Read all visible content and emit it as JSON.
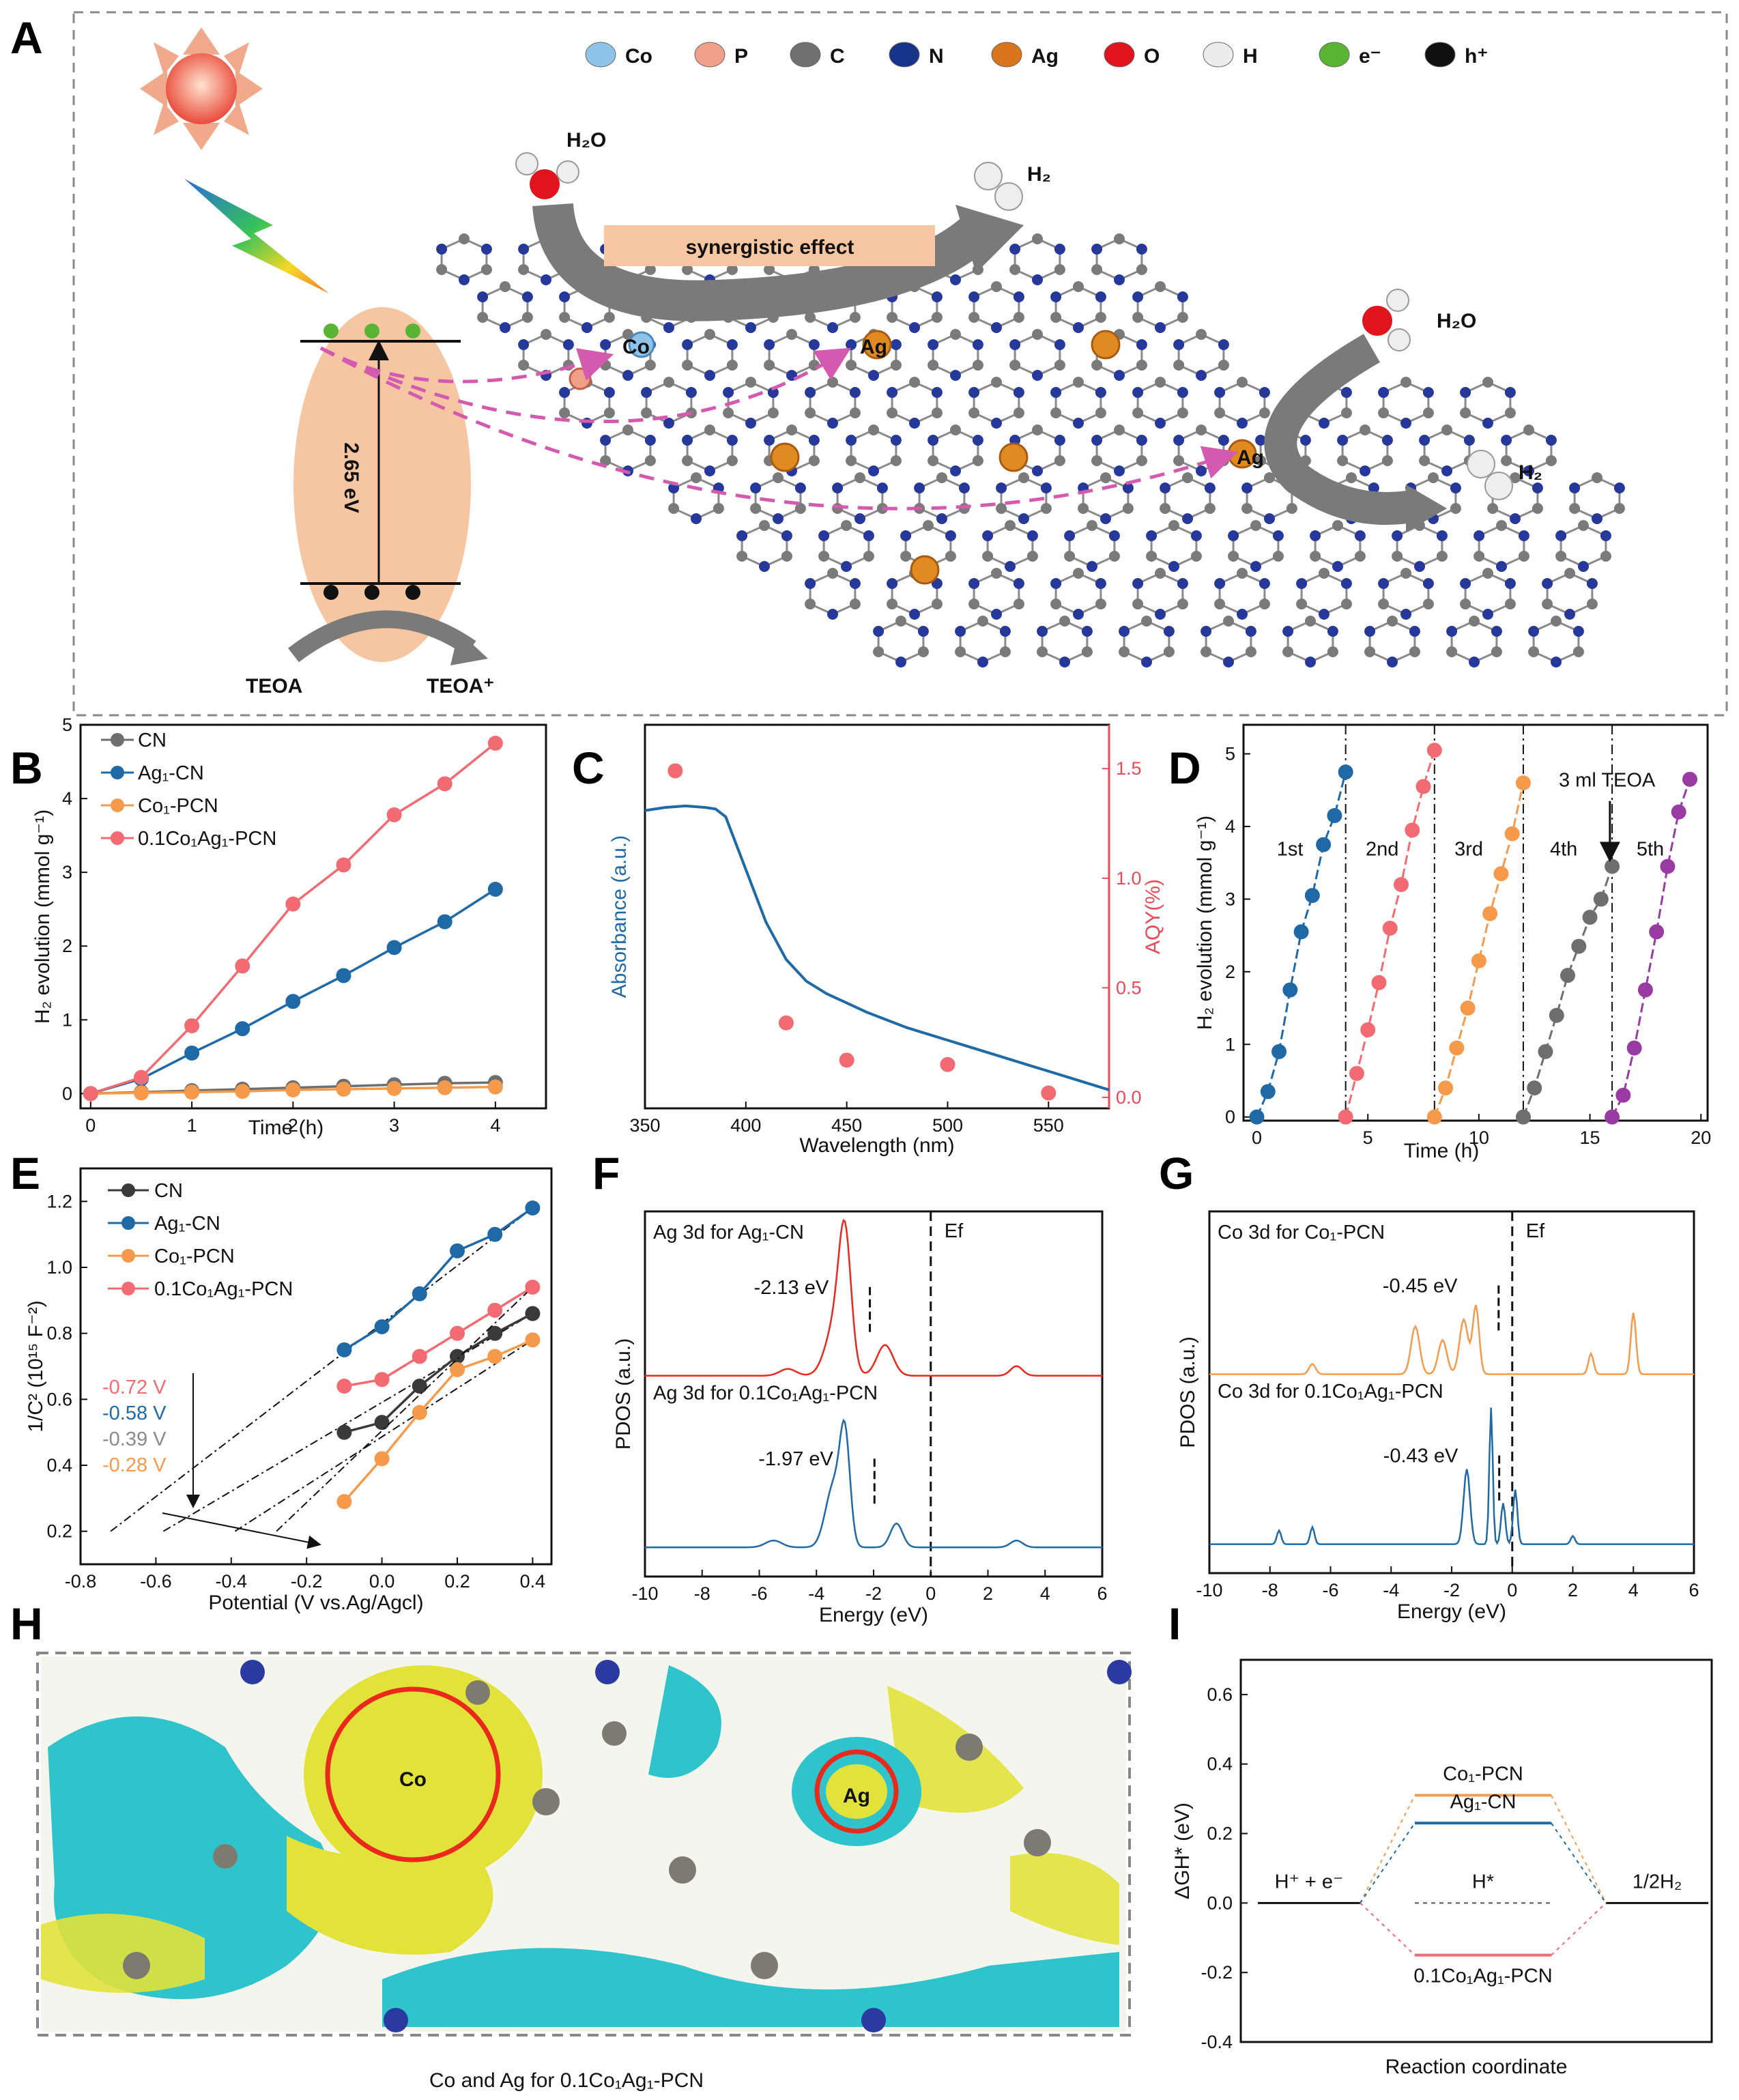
{
  "panel_labels": [
    "A",
    "B",
    "C",
    "D",
    "E",
    "F",
    "G",
    "H",
    "I"
  ],
  "panelA": {
    "legend": [
      "Co",
      "P",
      "C",
      "N",
      "Ag",
      "O",
      "H",
      "e⁻",
      "h⁺"
    ],
    "legend_colors": [
      "#8fc3ea",
      "#f0a088",
      "#707070",
      "#15348a",
      "#d8741c",
      "#e0141c",
      "#ececec",
      "#58b432",
      "#101010"
    ],
    "band_gap": "2.65 eV",
    "teoa": "TEOA",
    "teoa_plus": "TEOA⁺",
    "water": "H₂O",
    "hydrogen": "H₂",
    "effect": "synergistic effect",
    "co": "Co",
    "ag": "Ag"
  },
  "panelH": {
    "caption": "Co and Ag for  0.1Co₁Ag₁-PCN",
    "co": "Co",
    "ag": "Ag"
  },
  "chart_data": [
    {
      "id": "B",
      "type": "line",
      "xlabel": "Time (h)",
      "ylabel": "H₂ evolution (mmol g⁻¹)",
      "xlim": [
        -0.1,
        4.5
      ],
      "ylim": [
        -0.2,
        5
      ],
      "xticks": [
        "0",
        "1",
        "2",
        "3",
        "4"
      ],
      "yticks": [
        "0",
        "1",
        "2",
        "3",
        "4",
        "5"
      ],
      "x": [
        0,
        0.5,
        1,
        1.5,
        2,
        2.5,
        3,
        3.5,
        4
      ],
      "series": [
        {
          "name": "CN",
          "color": "#6e6e6e",
          "values": [
            0,
            0.02,
            0.04,
            0.06,
            0.08,
            0.1,
            0.12,
            0.14,
            0.15
          ]
        },
        {
          "name": "Ag₁-CN",
          "color": "#1f6aa6",
          "values": [
            0,
            0.2,
            0.55,
            0.88,
            1.25,
            1.6,
            1.98,
            2.33,
            2.77
          ]
        },
        {
          "name": "Co₁-PCN",
          "color": "#f59a4a",
          "values": [
            0,
            0.01,
            0.02,
            0.03,
            0.05,
            0.06,
            0.07,
            0.08,
            0.09
          ]
        },
        {
          "name": "0.1Co₁Ag₁-PCN",
          "color": "#f26a72",
          "values": [
            0,
            0.22,
            0.92,
            1.73,
            2.57,
            3.1,
            3.78,
            4.2,
            4.75
          ]
        }
      ]
    },
    {
      "id": "C",
      "type": "line",
      "xlabel": "Wavelength (nm)",
      "ylabel": "Absorbance (a.u.)",
      "y2label": "AQY(%)",
      "xlim": [
        350,
        580
      ],
      "y2lim": [
        -0.05,
        1.7
      ],
      "xticks": [
        "350",
        "400",
        "450",
        "500",
        "550"
      ],
      "y2ticks": [
        "0.0",
        "0.5",
        "1.0",
        "1.5"
      ],
      "absorbance": {
        "name": "Absorbance",
        "color": "#1f6aa6",
        "x": [
          350,
          360,
          370,
          380,
          385,
          390,
          400,
          410,
          420,
          430,
          440,
          450,
          460,
          470,
          480,
          500,
          520,
          540,
          560,
          580
        ],
        "values": [
          0.92,
          0.93,
          0.935,
          0.93,
          0.925,
          0.9,
          0.73,
          0.56,
          0.44,
          0.37,
          0.33,
          0.3,
          0.27,
          0.245,
          0.22,
          0.18,
          0.14,
          0.1,
          0.06,
          0.02
        ]
      },
      "aqy": {
        "name": "AQY",
        "color": "#f26a72",
        "x": [
          365,
          420,
          450,
          500,
          550
        ],
        "values": [
          1.49,
          0.34,
          0.17,
          0.15,
          0.02
        ]
      }
    },
    {
      "id": "D",
      "type": "scatter",
      "xlabel": "Time (h)",
      "ylabel": "H₂ evolution (mmol g⁻¹)",
      "xlim": [
        -0.6,
        20.3
      ],
      "ylim": [
        -0.05,
        5.4
      ],
      "xticks": [
        "0",
        "5",
        "10",
        "15",
        "20"
      ],
      "yticks": [
        "0",
        "1",
        "2",
        "3",
        "4",
        "5"
      ],
      "dividers": [
        4,
        8,
        12,
        16
      ],
      "annotation": "3 ml TEOA",
      "series": [
        {
          "name": "1st",
          "color": "#1f6aa6",
          "x": [
            0,
            0.5,
            1,
            1.5,
            2,
            2.5,
            3,
            3.5,
            4
          ],
          "values": [
            0,
            0.35,
            0.9,
            1.75,
            2.55,
            3.05,
            3.75,
            4.15,
            4.75
          ]
        },
        {
          "name": "2nd",
          "color": "#f26a72",
          "x": [
            4,
            4.5,
            5,
            5.5,
            6,
            6.5,
            7,
            7.5,
            8
          ],
          "values": [
            0,
            0.6,
            1.2,
            1.85,
            2.6,
            3.2,
            3.95,
            4.55,
            5.05
          ]
        },
        {
          "name": "3rd",
          "color": "#f59a4a",
          "x": [
            8,
            8.5,
            9,
            9.5,
            10,
            10.5,
            11,
            11.5,
            12
          ],
          "values": [
            0,
            0.4,
            0.95,
            1.5,
            2.15,
            2.8,
            3.35,
            3.9,
            4.6
          ]
        },
        {
          "name": "4th",
          "color": "#6e6e6e",
          "x": [
            12,
            12.5,
            13,
            13.5,
            14,
            14.5,
            15,
            15.5,
            16
          ],
          "values": [
            0,
            0.4,
            0.9,
            1.4,
            1.95,
            2.35,
            2.75,
            3.0,
            3.45
          ]
        },
        {
          "name": "5th",
          "color": "#9a3aa3",
          "x": [
            16,
            16.5,
            17,
            17.5,
            18,
            18.5,
            19,
            19.5
          ],
          "values": [
            0,
            0.3,
            0.95,
            1.75,
            2.55,
            3.45,
            4.2,
            4.65
          ]
        }
      ]
    },
    {
      "id": "E",
      "type": "line",
      "xlabel": "Potential (V vs.Ag/Agcl)",
      "ylabel": "1/C² (10¹⁵ F⁻²)",
      "xlim": [
        -0.8,
        0.45
      ],
      "ylim": [
        0.1,
        1.3
      ],
      "xticks": [
        "-0.8",
        "-0.6",
        "-0.4",
        "-0.2",
        "0.0",
        "0.2",
        "0.4"
      ],
      "yticks": [
        "0.2",
        "0.4",
        "0.6",
        "0.8",
        "1.0",
        "1.2"
      ],
      "x": [
        -0.1,
        0,
        0.1,
        0.2,
        0.3,
        0.4
      ],
      "series": [
        {
          "name": "CN",
          "color": "#3a3a3a",
          "values": [
            0.5,
            0.53,
            0.64,
            0.73,
            0.8,
            0.86
          ]
        },
        {
          "name": "Ag₁-CN",
          "color": "#1f6aa6",
          "values": [
            0.75,
            0.82,
            0.92,
            1.05,
            1.1,
            1.18
          ]
        },
        {
          "name": "Co₁-PCN",
          "color": "#f59a4a",
          "values": [
            0.29,
            0.42,
            0.56,
            0.69,
            0.73,
            0.78
          ]
        },
        {
          "name": "0.1Co₁Ag₁-PCN",
          "color": "#f26a72",
          "values": [
            0.64,
            0.66,
            0.73,
            0.8,
            0.87,
            0.94
          ]
        }
      ],
      "intercepts": [
        {
          "label": "-0.72 V",
          "color": "#f26a72"
        },
        {
          "label": "-0.58 V",
          "color": "#1f6aa6"
        },
        {
          "label": "-0.39 V",
          "color": "#8a8a8a"
        },
        {
          "label": "-0.28 V",
          "color": "#f59a4a"
        }
      ]
    },
    {
      "id": "F",
      "type": "line",
      "xlabel": "Energy (eV)",
      "ylabel": "PDOS (a.u.)",
      "xlim": [
        -10,
        6
      ],
      "xticks": [
        "-10",
        "-8",
        "-6",
        "-4",
        "-2",
        "0",
        "2",
        "4",
        "6"
      ],
      "fermi_label": "Ef",
      "series": [
        {
          "name": "Ag 3d for Ag₁-CN",
          "color": "#e8291c",
          "d_band_center": "-2.13 eV"
        },
        {
          "name": "Ag 3d for 0.1Co₁Ag₁-PCN",
          "color": "#1f6aa6",
          "d_band_center": "-1.97 eV"
        }
      ]
    },
    {
      "id": "G",
      "type": "line",
      "xlabel": "Energy (eV)",
      "ylabel": "PDOS (a.u.)",
      "xlim": [
        -10,
        6
      ],
      "xticks": [
        "-10",
        "-8",
        "-6",
        "-4",
        "-2",
        "0",
        "2",
        "4",
        "6"
      ],
      "fermi_label": "Ef",
      "series": [
        {
          "name": "Co 3d for Co₁-PCN",
          "color": "#f59a4a",
          "d_band_center": "-0.45 eV"
        },
        {
          "name": "Co 3d for 0.1Co₁Ag₁-PCN",
          "color": "#1f6aa6",
          "d_band_center": "-0.43 eV"
        }
      ]
    },
    {
      "id": "I",
      "type": "line",
      "xlabel": "Reaction coordinate",
      "ylabel": "ΔGH* (eV)",
      "ylim": [
        -0.4,
        0.7
      ],
      "yticks": [
        "-0.4",
        "-0.2",
        "0.0",
        "0.2",
        "0.4",
        "0.6"
      ],
      "states": [
        "H⁺ + e⁻",
        "H*",
        "1/2H₂"
      ],
      "series": [
        {
          "name": "Co₁-PCN",
          "color": "#f59a4a",
          "values": [
            0,
            0.31,
            0
          ]
        },
        {
          "name": "Ag₁-CN",
          "color": "#1f6aa6",
          "values": [
            0,
            0.23,
            0
          ]
        },
        {
          "name": "0.1Co₁Ag₁-PCN",
          "color": "#f26a72",
          "values": [
            0,
            -0.15,
            0
          ]
        }
      ]
    }
  ]
}
